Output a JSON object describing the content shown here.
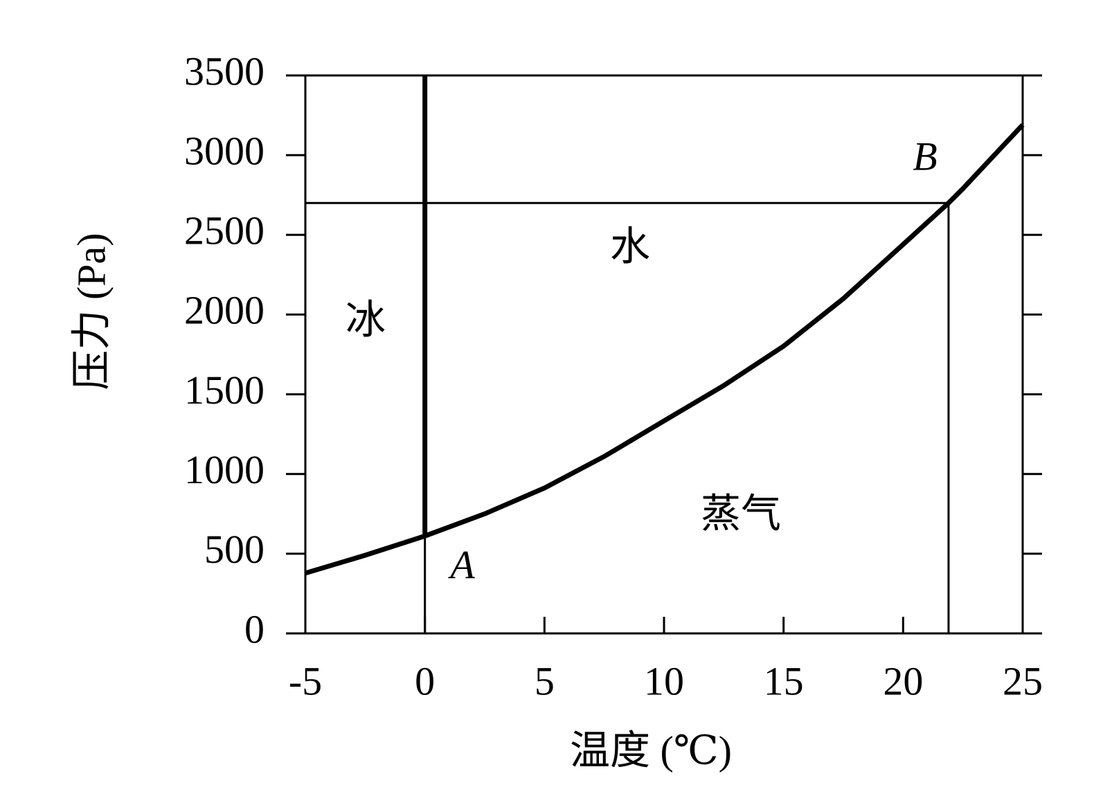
{
  "chart_data": {
    "type": "line",
    "x_label": "温度 (℃)",
    "y_label": "压力 (Pa)",
    "xlim": [
      -5,
      25
    ],
    "xticks": [
      -5,
      0,
      5,
      10,
      15,
      20,
      25
    ],
    "ylim": [
      0,
      3500
    ],
    "yticks": [
      0,
      500,
      1000,
      1500,
      2000,
      2500,
      3000,
      3500
    ],
    "series": [
      {
        "color": "#000000",
        "style": "thick",
        "x": [
          -5,
          -2.5,
          0,
          2.5,
          5,
          7.5,
          10,
          12.5,
          15,
          17.5,
          20,
          21.9,
          22.5,
          25
        ],
        "values": [
          378,
          490,
          611,
          750,
          912,
          1110,
          1333,
          1555,
          1802,
          2100,
          2440,
          2700,
          2790,
          3190
        ]
      }
    ],
    "reference_lines": [
      {
        "color": "#000000",
        "style": "thick",
        "x": [
          0,
          0
        ],
        "values": [
          611,
          3500
        ]
      },
      {
        "color": "#000000",
        "style": "thin",
        "x": [
          0,
          0
        ],
        "values": [
          0,
          611
        ]
      },
      {
        "color": "#000000",
        "style": "thin",
        "x": [
          -5,
          21.9
        ],
        "values": [
          2700,
          2700
        ]
      },
      {
        "color": "#000000",
        "style": "thin",
        "x": [
          21.9,
          21.9
        ],
        "values": [
          0,
          2700
        ]
      }
    ],
    "annotations": [
      "冰",
      "水",
      "蒸气",
      "A",
      "B"
    ]
  }
}
